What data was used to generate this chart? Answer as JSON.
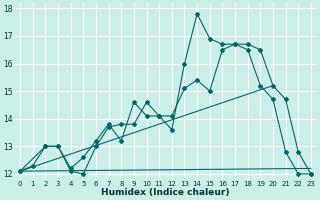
{
  "xlabel": "Humidex (Indice chaleur)",
  "bg_color": "#cceee8",
  "grid_color": "#ffffff",
  "line_color": "#006666",
  "xlim": [
    -0.5,
    23.5
  ],
  "ylim": [
    11.8,
    18.2
  ],
  "xticks": [
    0,
    1,
    2,
    3,
    4,
    5,
    6,
    7,
    8,
    9,
    10,
    11,
    12,
    13,
    14,
    15,
    16,
    17,
    18,
    19,
    20,
    21,
    22,
    23
  ],
  "yticks": [
    12,
    13,
    14,
    15,
    16,
    17,
    18
  ],
  "line1_x": [
    0,
    1,
    2,
    3,
    4,
    5,
    6,
    7,
    8,
    9,
    10,
    11,
    12,
    13,
    14,
    15,
    16,
    17,
    18,
    19,
    20,
    21,
    22,
    23
  ],
  "line1_y": [
    12.1,
    12.3,
    13.0,
    13.0,
    12.1,
    12.0,
    13.0,
    13.7,
    13.8,
    13.8,
    14.6,
    14.1,
    13.6,
    16.0,
    17.8,
    16.9,
    16.7,
    16.7,
    16.5,
    15.2,
    14.7,
    12.8,
    12.0,
    12.0
  ],
  "line2_x": [
    0,
    2,
    3,
    4,
    5,
    6,
    7,
    8,
    9,
    10,
    11,
    12,
    13,
    14,
    15,
    16,
    17,
    18,
    19,
    20,
    21,
    22,
    23
  ],
  "line2_y": [
    12.1,
    13.0,
    13.0,
    12.2,
    12.6,
    13.2,
    13.8,
    13.2,
    14.6,
    14.1,
    14.1,
    14.1,
    15.1,
    15.4,
    15.0,
    16.5,
    16.7,
    16.7,
    16.5,
    15.2,
    14.7,
    12.8,
    12.0
  ],
  "line3_x": [
    0,
    23
  ],
  "line3_y": [
    12.1,
    12.2
  ],
  "line4_x": [
    0,
    20
  ],
  "line4_y": [
    12.1,
    15.2
  ]
}
